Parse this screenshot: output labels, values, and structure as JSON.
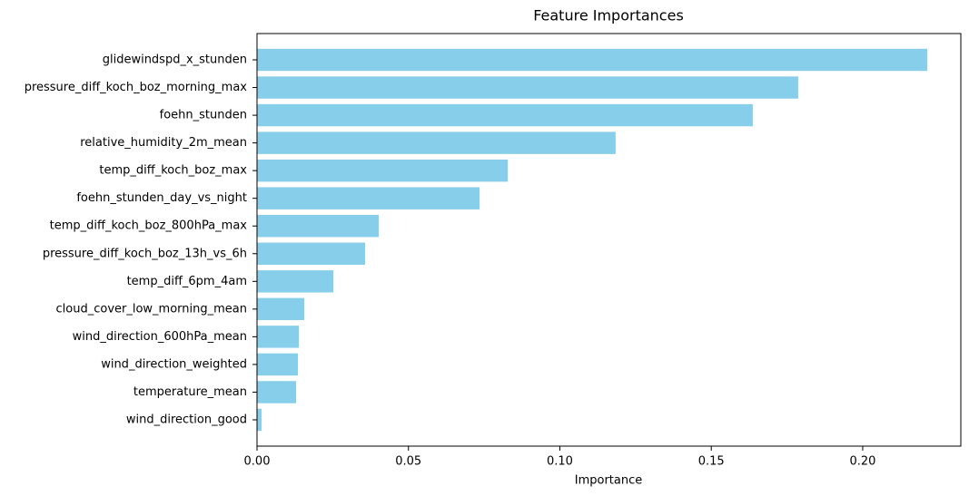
{
  "chart_data": {
    "type": "barh",
    "title": "Feature Importances",
    "x_label": "Importance",
    "categories": [
      "glidewindspd_x_stunden",
      "pressure_diff_koch_boz_morning_max",
      "foehn_stunden",
      "relative_humidity_2m_mean",
      "temp_diff_koch_boz_max",
      "foehn_stunden_day_vs_night",
      "temp_diff_koch_boz_800hPa_max",
      "pressure_diff_koch_boz_13h_vs_6h",
      "temp_diff_6pm_4am",
      "cloud_cover_low_morning_mean",
      "wind_direction_600hPa_mean",
      "wind_direction_weighted",
      "temperature_mean",
      "wind_direction_good"
    ],
    "values": [
      0.2213,
      0.1787,
      0.1637,
      0.1184,
      0.0828,
      0.0735,
      0.0402,
      0.0357,
      0.0252,
      0.0156,
      0.0138,
      0.0135,
      0.0129,
      0.0015
    ],
    "color": "#87ceeb",
    "xlim": [
      0,
      0.2324
    ],
    "xticks": [
      {
        "value": 0,
        "label": "0.00"
      },
      {
        "value": 0.05,
        "label": "0.05"
      },
      {
        "value": 0.1,
        "label": "0.10"
      },
      {
        "value": 0.15,
        "label": "0.15"
      },
      {
        "value": 0.2,
        "label": "0.20"
      }
    ],
    "grid": false
  }
}
